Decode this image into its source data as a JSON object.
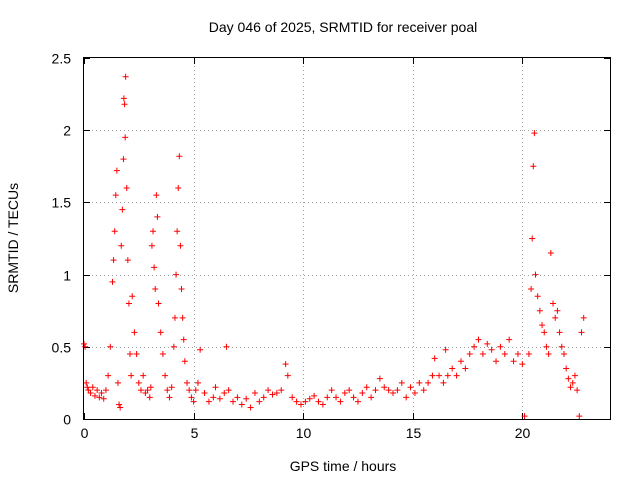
{
  "chart_data": {
    "type": "scatter",
    "title": "Day 046 of 2025, SRMTID for receiver poal",
    "xlabel": "GPS time / hours",
    "ylabel": "SRMTID / TECUs",
    "xlim": [
      0,
      24
    ],
    "ylim": [
      0,
      2.5
    ],
    "xticks": [
      0,
      5,
      10,
      15,
      20
    ],
    "xtick_labels": [
      "0",
      "5",
      "10",
      "15",
      "20"
    ],
    "yticks": [
      0,
      0.5,
      1,
      1.5,
      2,
      2.5
    ],
    "ytick_labels": [
      "0",
      "0.5",
      "1",
      "1.5",
      "2",
      "2.5"
    ],
    "grid": true,
    "marker": "+",
    "series": [
      {
        "name": "SRMTID",
        "color": "#ff0000",
        "points": [
          [
            0.0,
            0.52
          ],
          [
            0.05,
            0.5
          ],
          [
            0.1,
            0.25
          ],
          [
            0.15,
            0.22
          ],
          [
            0.2,
            0.2
          ],
          [
            0.3,
            0.18
          ],
          [
            0.4,
            0.22
          ],
          [
            0.5,
            0.16
          ],
          [
            0.6,
            0.2
          ],
          [
            0.7,
            0.15
          ],
          [
            0.8,
            0.18
          ],
          [
            0.9,
            0.14
          ],
          [
            1.0,
            0.2
          ],
          [
            1.1,
            0.3
          ],
          [
            1.2,
            0.5
          ],
          [
            1.3,
            0.95
          ],
          [
            1.35,
            1.1
          ],
          [
            1.4,
            1.3
          ],
          [
            1.45,
            1.55
          ],
          [
            1.5,
            1.72
          ],
          [
            1.55,
            0.25
          ],
          [
            1.6,
            0.1
          ],
          [
            1.65,
            0.08
          ],
          [
            1.7,
            1.2
          ],
          [
            1.75,
            1.45
          ],
          [
            1.8,
            1.8
          ],
          [
            1.82,
            2.22
          ],
          [
            1.85,
            2.18
          ],
          [
            1.88,
            1.95
          ],
          [
            1.9,
            2.37
          ],
          [
            1.95,
            1.6
          ],
          [
            2.0,
            1.1
          ],
          [
            2.05,
            0.8
          ],
          [
            2.1,
            0.45
          ],
          [
            2.15,
            0.3
          ],
          [
            2.2,
            0.85
          ],
          [
            2.3,
            0.6
          ],
          [
            2.4,
            0.45
          ],
          [
            2.5,
            0.25
          ],
          [
            2.6,
            0.2
          ],
          [
            2.7,
            0.3
          ],
          [
            2.8,
            0.18
          ],
          [
            2.9,
            0.2
          ],
          [
            3.0,
            0.15
          ],
          [
            3.05,
            0.22
          ],
          [
            3.1,
            1.2
          ],
          [
            3.15,
            1.3
          ],
          [
            3.2,
            1.05
          ],
          [
            3.25,
            0.9
          ],
          [
            3.3,
            1.55
          ],
          [
            3.35,
            1.4
          ],
          [
            3.4,
            0.8
          ],
          [
            3.5,
            0.6
          ],
          [
            3.6,
            0.45
          ],
          [
            3.7,
            0.3
          ],
          [
            3.8,
            0.2
          ],
          [
            3.9,
            0.15
          ],
          [
            4.0,
            0.22
          ],
          [
            4.1,
            0.5
          ],
          [
            4.15,
            0.7
          ],
          [
            4.2,
            1.0
          ],
          [
            4.25,
            1.3
          ],
          [
            4.3,
            1.6
          ],
          [
            4.35,
            1.82
          ],
          [
            4.4,
            1.2
          ],
          [
            4.45,
            0.9
          ],
          [
            4.5,
            0.7
          ],
          [
            4.55,
            0.55
          ],
          [
            4.6,
            0.4
          ],
          [
            4.7,
            0.25
          ],
          [
            4.8,
            0.2
          ],
          [
            4.9,
            0.15
          ],
          [
            5.0,
            0.12
          ],
          [
            5.1,
            0.2
          ],
          [
            5.2,
            0.25
          ],
          [
            5.3,
            0.48
          ],
          [
            5.5,
            0.18
          ],
          [
            5.7,
            0.12
          ],
          [
            5.9,
            0.15
          ],
          [
            6.0,
            0.22
          ],
          [
            6.2,
            0.14
          ],
          [
            6.4,
            0.18
          ],
          [
            6.5,
            0.5
          ],
          [
            6.6,
            0.2
          ],
          [
            6.8,
            0.12
          ],
          [
            7.0,
            0.15
          ],
          [
            7.2,
            0.1
          ],
          [
            7.4,
            0.14
          ],
          [
            7.6,
            0.08
          ],
          [
            7.8,
            0.18
          ],
          [
            8.0,
            0.12
          ],
          [
            8.2,
            0.15
          ],
          [
            8.4,
            0.2
          ],
          [
            8.6,
            0.17
          ],
          [
            8.8,
            0.18
          ],
          [
            9.0,
            0.2
          ],
          [
            9.2,
            0.38
          ],
          [
            9.3,
            0.3
          ],
          [
            9.5,
            0.15
          ],
          [
            9.7,
            0.12
          ],
          [
            9.9,
            0.1
          ],
          [
            10.1,
            0.12
          ],
          [
            10.3,
            0.14
          ],
          [
            10.5,
            0.16
          ],
          [
            10.7,
            0.12
          ],
          [
            10.9,
            0.1
          ],
          [
            11.1,
            0.15
          ],
          [
            11.3,
            0.2
          ],
          [
            11.5,
            0.15
          ],
          [
            11.7,
            0.12
          ],
          [
            11.9,
            0.18
          ],
          [
            12.1,
            0.2
          ],
          [
            12.3,
            0.15
          ],
          [
            12.5,
            0.12
          ],
          [
            12.7,
            0.18
          ],
          [
            12.9,
            0.22
          ],
          [
            13.1,
            0.15
          ],
          [
            13.3,
            0.2
          ],
          [
            13.5,
            0.28
          ],
          [
            13.7,
            0.22
          ],
          [
            13.9,
            0.2
          ],
          [
            14.1,
            0.18
          ],
          [
            14.3,
            0.2
          ],
          [
            14.5,
            0.25
          ],
          [
            14.7,
            0.15
          ],
          [
            14.9,
            0.22
          ],
          [
            15.1,
            0.18
          ],
          [
            15.3,
            0.25
          ],
          [
            15.5,
            0.2
          ],
          [
            15.7,
            0.25
          ],
          [
            15.9,
            0.3
          ],
          [
            16.0,
            0.42
          ],
          [
            16.2,
            0.3
          ],
          [
            16.4,
            0.25
          ],
          [
            16.5,
            0.48
          ],
          [
            16.6,
            0.3
          ],
          [
            16.8,
            0.35
          ],
          [
            17.0,
            0.3
          ],
          [
            17.2,
            0.4
          ],
          [
            17.4,
            0.35
          ],
          [
            17.6,
            0.45
          ],
          [
            17.8,
            0.5
          ],
          [
            18.0,
            0.55
          ],
          [
            18.2,
            0.45
          ],
          [
            18.4,
            0.52
          ],
          [
            18.6,
            0.48
          ],
          [
            18.8,
            0.4
          ],
          [
            19.0,
            0.5
          ],
          [
            19.2,
            0.45
          ],
          [
            19.4,
            0.55
          ],
          [
            19.6,
            0.4
          ],
          [
            19.8,
            0.45
          ],
          [
            20.0,
            0.38
          ],
          [
            20.1,
            0.02
          ],
          [
            20.3,
            0.45
          ],
          [
            20.4,
            0.9
          ],
          [
            20.45,
            1.25
          ],
          [
            20.5,
            1.75
          ],
          [
            20.55,
            1.98
          ],
          [
            20.6,
            1.0
          ],
          [
            20.7,
            0.85
          ],
          [
            20.8,
            0.75
          ],
          [
            20.9,
            0.65
          ],
          [
            21.0,
            0.6
          ],
          [
            21.1,
            0.5
          ],
          [
            21.2,
            0.45
          ],
          [
            21.3,
            1.15
          ],
          [
            21.4,
            0.8
          ],
          [
            21.5,
            0.7
          ],
          [
            21.6,
            0.75
          ],
          [
            21.7,
            0.6
          ],
          [
            21.8,
            0.5
          ],
          [
            21.9,
            0.45
          ],
          [
            22.0,
            0.35
          ],
          [
            22.1,
            0.28
          ],
          [
            22.2,
            0.22
          ],
          [
            22.3,
            0.25
          ],
          [
            22.4,
            0.3
          ],
          [
            22.5,
            0.2
          ],
          [
            22.6,
            0.02
          ],
          [
            22.7,
            0.6
          ],
          [
            22.8,
            0.7
          ]
        ]
      }
    ]
  }
}
